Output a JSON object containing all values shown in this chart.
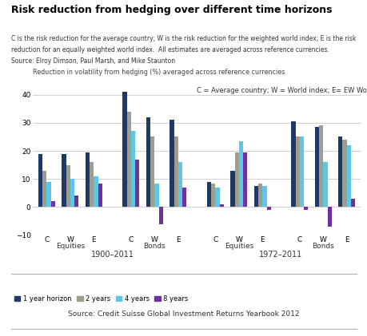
{
  "title": "Risk reduction from hedging over different time horizons",
  "subtitle_line1": "C is the risk reduction for the average country; W is the risk reduction for the weighted world index; E is the risk",
  "subtitle_line2": "reduction for an equally weighted world index.  All estimates are averaged across reference currencies.",
  "subtitle_line3": "Source: Elroy Dimson, Paul Marsh, and Mike Staunton",
  "ylabel": "Reduction in volatility from hedging (%) averaged across reference currencies",
  "footnote": "Source: Credit Suisse Global Investment Returns Yearbook 2012",
  "annotation": "C = Average country; W = World index; E= EW World index",
  "ylim": [
    -10,
    45
  ],
  "yticks": [
    -10,
    0,
    10,
    20,
    30,
    40
  ],
  "colors": {
    "1yr": "#1f3864",
    "2yr": "#9e9e8e",
    "4yr": "#5bc8e8",
    "8yr": "#7030a0"
  },
  "groups": [
    {
      "label": "C",
      "section": "Equities",
      "period": "1900–2011",
      "values": [
        19,
        13,
        9,
        2
      ]
    },
    {
      "label": "W",
      "section": "Equities",
      "period": "1900–2011",
      "values": [
        19,
        15,
        10,
        4
      ]
    },
    {
      "label": "E",
      "section": "Equities",
      "period": "1900–2011",
      "values": [
        19.5,
        16,
        11,
        8.5
      ]
    },
    {
      "label": "C",
      "section": "Bonds",
      "period": "1900–2011",
      "values": [
        41,
        34,
        27,
        17
      ]
    },
    {
      "label": "W",
      "section": "Bonds",
      "period": "1900–2011",
      "values": [
        32,
        25,
        8.5,
        -6
      ]
    },
    {
      "label": "E",
      "section": "Bonds",
      "period": "1900–2011",
      "values": [
        31,
        25,
        16,
        7
      ]
    },
    {
      "label": "C",
      "section": "Equities",
      "period": "1972–2011",
      "values": [
        9,
        8.5,
        7,
        1
      ]
    },
    {
      "label": "W",
      "section": "Equities",
      "period": "1972–2011",
      "values": [
        13,
        19.5,
        23.5,
        19.5
      ]
    },
    {
      "label": "E",
      "section": "Equities",
      "period": "1972–2011",
      "values": [
        7.5,
        8.5,
        7.5,
        -1
      ]
    },
    {
      "label": "C",
      "section": "Bonds",
      "period": "1972–2011",
      "values": [
        30.5,
        25,
        25,
        -1
      ]
    },
    {
      "label": "W",
      "section": "Bonds",
      "period": "1972–2011",
      "values": [
        28.5,
        29,
        16,
        -7
      ]
    },
    {
      "label": "E",
      "section": "Bonds",
      "period": "1972–2011",
      "values": [
        25,
        24,
        22,
        3
      ]
    }
  ],
  "legend": [
    "1 year horizon",
    "2 years",
    "4 years",
    "8 years"
  ]
}
